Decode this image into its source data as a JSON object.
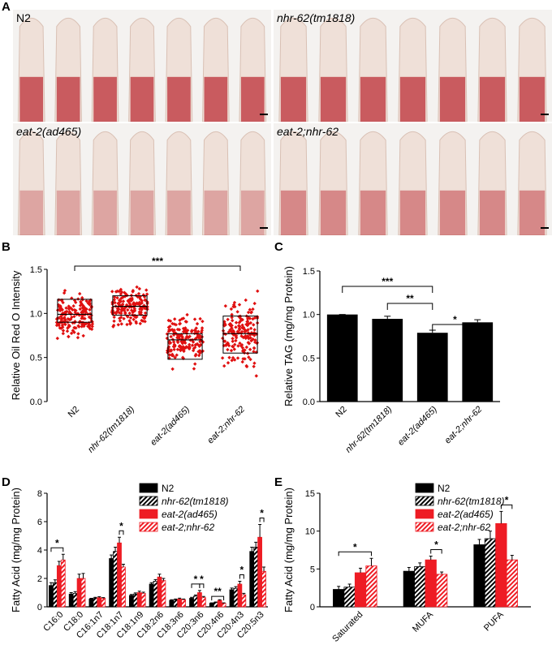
{
  "panel_letters": {
    "a": "A",
    "b": "B",
    "c": "C",
    "d": "D",
    "e": "E"
  },
  "micrographs": [
    {
      "label": "N2",
      "italic": false,
      "worms": 7
    },
    {
      "label": "nhr-62(tm1818)",
      "italic": true,
      "worms": 7
    },
    {
      "label": "eat-2(ad465)",
      "italic": true,
      "worms": 7
    },
    {
      "label": "eat-2;nhr-62",
      "italic": true,
      "worms": 7
    }
  ],
  "colors": {
    "black": "#000000",
    "red": "#ee1c24",
    "red_scatter": "#e01010",
    "pink_hatch": "#f2a0a0",
    "micro_bg": "#f4f2f0",
    "stain": "#b4141e"
  },
  "chart_data": [
    {
      "id": "B",
      "type": "box-scatter",
      "ylabel": "Relative Oil Red O Intensity",
      "ylim": [
        0,
        1.5
      ],
      "yticks": [
        "0.0",
        "0.5",
        "1.0",
        "1.5"
      ],
      "categories": [
        "N2",
        "nhr-62(tm1818)",
        "eat-2(ad465)",
        "eat-2;nhr-62"
      ],
      "boxes": [
        {
          "q1": 0.9,
          "median": 0.99,
          "q3": 1.16
        },
        {
          "q1": 0.98,
          "median": 1.08,
          "q3": 1.2
        },
        {
          "q1": 0.48,
          "median": 0.7,
          "q3": 0.77
        },
        {
          "q1": 0.55,
          "median": 0.77,
          "q3": 0.97
        }
      ],
      "ranges": [
        [
          0.63,
          1.4
        ],
        [
          0.85,
          1.35
        ],
        [
          0.15,
          1.22
        ],
        [
          0.15,
          1.28
        ]
      ],
      "annotations": [
        {
          "text": "***",
          "from": 0,
          "to": 3
        }
      ]
    },
    {
      "id": "C",
      "type": "bar",
      "ylabel": "Relative TAG (mg/mg Protein)",
      "ylim": [
        0,
        1.5
      ],
      "yticks": [
        "0.0",
        "0.5",
        "1.0",
        "1.5"
      ],
      "categories": [
        "N2",
        "nhr-62(tm1818)",
        "eat-2(ad465)",
        "eat-2;nhr-62"
      ],
      "values": [
        1.0,
        0.95,
        0.79,
        0.91
      ],
      "errors": [
        0.0,
        0.03,
        0.03,
        0.03
      ],
      "annotations": [
        {
          "text": "***",
          "from": 0,
          "to": 2
        },
        {
          "text": "**",
          "from": 1,
          "to": 2
        },
        {
          "text": "*",
          "from": 2,
          "to": 3
        }
      ]
    },
    {
      "id": "D",
      "type": "bar",
      "ylabel": "Fatty Acid (mg/mg Protein)",
      "ylim": [
        0,
        8
      ],
      "yticks": [
        "0",
        "2",
        "4",
        "6",
        "8"
      ],
      "categories": [
        "C16:0",
        "C18:0",
        "C16:1n7",
        "C18:1n7",
        "C18:1n9",
        "C18:2n6",
        "C18:3n6",
        "C20:3n6",
        "C20:4n6",
        "C20:4n3",
        "C20:5n3"
      ],
      "series": [
        {
          "name": "N2",
          "values": [
            1.5,
            0.9,
            0.55,
            3.4,
            0.8,
            1.6,
            0.45,
            0.6,
            0.25,
            1.2,
            3.9
          ],
          "errors": [
            0.2,
            0.1,
            0.05,
            0.25,
            0.07,
            0.1,
            0.05,
            0.07,
            0.03,
            0.12,
            0.3
          ]
        },
        {
          "name": "nhr-62(tm1818)",
          "values": [
            1.7,
            0.95,
            0.62,
            3.9,
            0.9,
            1.8,
            0.5,
            0.75,
            0.3,
            1.3,
            4.2
          ],
          "errors": [
            0.2,
            0.12,
            0.05,
            0.3,
            0.08,
            0.12,
            0.05,
            0.08,
            0.04,
            0.12,
            0.35
          ]
        },
        {
          "name": "eat-2(ad465)",
          "values": [
            2.9,
            2.0,
            0.65,
            4.5,
            1.0,
            2.1,
            0.55,
            1.0,
            0.45,
            1.6,
            4.9
          ],
          "errors": [
            0.3,
            0.3,
            0.06,
            0.4,
            0.1,
            0.2,
            0.06,
            0.15,
            0.05,
            0.2,
            0.9
          ]
        },
        {
          "name": "eat-2;nhr-62",
          "values": [
            3.3,
            2.0,
            0.6,
            2.8,
            0.95,
            1.85,
            0.5,
            0.65,
            0.25,
            0.85,
            2.5
          ],
          "errors": [
            0.4,
            0.35,
            0.05,
            0.2,
            0.08,
            0.15,
            0.05,
            0.08,
            0.03,
            0.1,
            0.3
          ]
        }
      ],
      "annotations": [
        {
          "text": "*",
          "group": 0,
          "from": 0,
          "to": 3
        },
        {
          "text": "*",
          "group": 3,
          "from": 2,
          "to": 3
        },
        {
          "text": "*",
          "group": 7,
          "from": 0,
          "to": 2
        },
        {
          "text": "*",
          "group": 7,
          "from": 2,
          "to": 3
        },
        {
          "text": "**",
          "group": 8,
          "from": 0,
          "to": 3
        },
        {
          "text": "*",
          "group": 9,
          "from": 2,
          "to": 3
        },
        {
          "text": "*",
          "group": 10,
          "from": 2,
          "to": 3
        }
      ],
      "legend": "top-right"
    },
    {
      "id": "E",
      "type": "bar",
      "ylabel": "Fatty Acid (mg/mg Protein)",
      "ylim": [
        0,
        15
      ],
      "yticks": [
        "0",
        "5",
        "10",
        "15"
      ],
      "categories": [
        "Saturated",
        "MUFA",
        "PUFA"
      ],
      "series": [
        {
          "name": "N2",
          "values": [
            2.3,
            4.7,
            8.2
          ],
          "errors": [
            0.4,
            0.5,
            0.7
          ]
        },
        {
          "name": "nhr-62(tm1818)",
          "values": [
            2.6,
            5.3,
            9.0
          ],
          "errors": [
            0.4,
            0.5,
            1.0
          ]
        },
        {
          "name": "eat-2(ad465)",
          "values": [
            4.5,
            6.2,
            11.0
          ],
          "errors": [
            0.6,
            0.5,
            1.6
          ]
        },
        {
          "name": "eat-2;nhr-62",
          "values": [
            5.4,
            4.3,
            6.2
          ],
          "errors": [
            1.0,
            0.3,
            0.6
          ]
        }
      ],
      "annotations": [
        {
          "text": "*",
          "group": 0,
          "from": 0,
          "to": 3
        },
        {
          "text": "*",
          "group": 1,
          "from": 2,
          "to": 3
        },
        {
          "text": "*",
          "group": 2,
          "from": 2,
          "to": 3
        }
      ],
      "legend": "top-right"
    }
  ]
}
